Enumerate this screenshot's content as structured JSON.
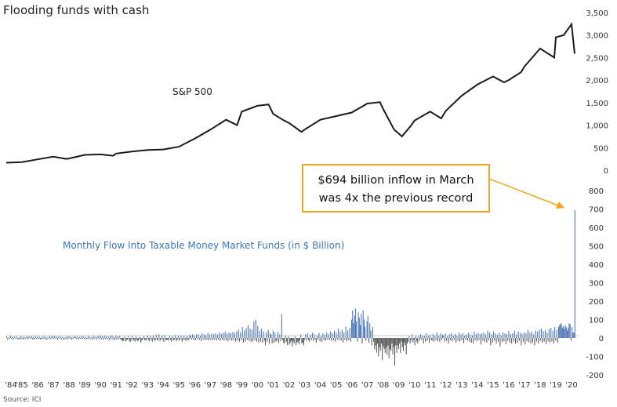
{
  "title": "Flooding funds with cash",
  "source": "Source: ICI",
  "colors": {
    "sp500_line": "#1a1a1a",
    "inflow": "#4472b8",
    "outflow": "#555555",
    "callout_border": "#f2a51a",
    "arrow": "#f2a51a",
    "flow_label": "#3f76b6"
  },
  "annotation": {
    "line1": "$694 billion inflow in March",
    "line2": "was 4x the previous record"
  },
  "chart_data": [
    {
      "type": "line",
      "series": [
        {
          "name": "S&P 500",
          "x": [
            1984,
            1985,
            1986,
            1987,
            1987.8,
            1988,
            1989,
            1990,
            1990.8,
            1991,
            1992,
            1993,
            1994,
            1995,
            1996,
            1997,
            1998,
            1998.7,
            1999,
            2000,
            2000.7,
            2001,
            2001.7,
            2002,
            2002.8,
            2003,
            2004,
            2005,
            2006,
            2007,
            2007.8,
            2008,
            2008.7,
            2009.2,
            2009.8,
            2010,
            2011,
            2011.7,
            2012,
            2013,
            2014,
            2015,
            2015.7,
            2016,
            2016.8,
            2017,
            2018,
            2018.9,
            2019,
            2019.5,
            2020,
            2020.2
          ],
          "values": [
            165,
            180,
            240,
            300,
            250,
            260,
            340,
            350,
            320,
            370,
            415,
            450,
            460,
            520,
            700,
            900,
            1120,
            1000,
            1300,
            1430,
            1460,
            1250,
            1100,
            1050,
            850,
            900,
            1120,
            1200,
            1280,
            1480,
            1510,
            1360,
            900,
            750,
            1000,
            1100,
            1300,
            1150,
            1320,
            1650,
            1900,
            2080,
            1950,
            2000,
            2180,
            2300,
            2700,
            2500,
            2950,
            3000,
            3240,
            2585
          ]
        }
      ],
      "ylim": [
        0,
        3500
      ],
      "yticks": [
        "3,500",
        "3,000",
        "2,500",
        "2,000",
        "1,500",
        "1,000",
        "500",
        "0"
      ]
    },
    {
      "type": "bar",
      "series": [
        {
          "name": "Monthly Flow Into Taxable Money Market Funds (in $ Billion)",
          "x_start": 1984,
          "x_end": 2020.25,
          "values": [
            10,
            -8,
            5,
            -6,
            12,
            -4,
            8,
            -10,
            6,
            -3,
            9,
            -5,
            -7,
            4,
            -9,
            11,
            -6,
            7,
            -8,
            5,
            -4,
            10,
            -7,
            6,
            8,
            -5,
            10,
            -7,
            6,
            -9,
            12,
            -4,
            7,
            -6,
            9,
            -8,
            -5,
            8,
            -6,
            10,
            -7,
            5,
            -9,
            7,
            -4,
            11,
            -6,
            8,
            9,
            -6,
            12,
            -5,
            8,
            -10,
            7,
            -4,
            10,
            -8,
            6,
            -5,
            -8,
            5,
            -7,
            9,
            -6,
            11,
            -5,
            7,
            -9,
            6,
            -4,
            10,
            7,
            -6,
            9,
            -8,
            5,
            -4,
            11,
            -7,
            8,
            -5,
            6,
            -9,
            -4,
            10,
            -6,
            8,
            -7,
            5,
            -9,
            12,
            -5,
            7,
            -8,
            6,
            12,
            -8,
            15,
            -6,
            9,
            -10,
            14,
            -5,
            11,
            -7,
            8,
            -12,
            10,
            -6,
            13,
            -9,
            7,
            -11,
            15,
            -8,
            9,
            -6,
            12,
            -10,
            -10,
            -18,
            -14,
            8,
            -20,
            -12,
            -9,
            10,
            -16,
            -22,
            -8,
            12,
            -15,
            -10,
            -20,
            9,
            -14,
            -18,
            -11,
            7,
            -25,
            -13,
            -9,
            10,
            -12,
            -8,
            -15,
            14,
            -10,
            -18,
            12,
            -9,
            -20,
            15,
            -11,
            -14,
            18,
            -12,
            -9,
            20,
            -16,
            -10,
            14,
            -8,
            -22,
            16,
            -13,
            -10,
            -10,
            -15,
            12,
            -8,
            -20,
            14,
            -12,
            -9,
            16,
            -18,
            -10,
            13,
            -14,
            -8,
            15,
            -20,
            -11,
            12,
            -9,
            -16,
            14,
            -12,
            -10,
            18,
            12,
            -8,
            20,
            -10,
            15,
            -12,
            18,
            -6,
            22,
            -10,
            14,
            -16,
            25,
            -8,
            20,
            -12,
            16,
            -10,
            28,
            -14,
            18,
            -9,
            24,
            -11,
            20,
            -10,
            25,
            -12,
            18,
            -8,
            30,
            -15,
            22,
            -10,
            28,
            -14,
            35,
            -12,
            24,
            -18,
            30,
            -10,
            26,
            -15,
            32,
            -12,
            28,
            -20,
            35,
            -15,
            45,
            -20,
            30,
            -12,
            60,
            -25,
            40,
            -18,
            55,
            -10,
            70,
            -15,
            50,
            -22,
            45,
            -18,
            90,
            -12,
            100,
            -20,
            65,
            -25,
            40,
            -20,
            50,
            -25,
            35,
            -15,
            -40,
            30,
            -20,
            45,
            -30,
            25,
            20,
            -30,
            40,
            -25,
            30,
            -20,
            -15,
            35,
            -28,
            20,
            -18,
            128,
            -10,
            -25,
            -30,
            15,
            -20,
            -40,
            10,
            -35,
            -25,
            -15,
            -45,
            -20,
            -30,
            10,
            -40,
            -25,
            -20,
            -35,
            -15,
            20,
            -30,
            -25,
            -40,
            -10,
            20,
            -15,
            25,
            -10,
            -20,
            18,
            -12,
            30,
            -15,
            22,
            -8,
            -25,
            15,
            -10,
            28,
            -18,
            12,
            -20,
            25,
            -12,
            18,
            -15,
            30,
            -10,
            20,
            -10,
            35,
            -15,
            25,
            -12,
            40,
            -20,
            30,
            -8,
            50,
            -10,
            35,
            -15,
            45,
            -25,
            30,
            -10,
            60,
            -18,
            40,
            -12,
            55,
            -20,
            100,
            150,
            80,
            120,
            160,
            90,
            -20,
            140,
            110,
            70,
            130,
            -30,
            150,
            100,
            60,
            -15,
            90,
            120,
            -25,
            80,
            40,
            -40,
            60,
            -20,
            -60,
            -40,
            -80,
            -30,
            -100,
            -50,
            -70,
            -30,
            -120,
            -45,
            -60,
            -80,
            -50,
            -90,
            -40,
            -110,
            -60,
            -70,
            -30,
            -90,
            -50,
            -150,
            -40,
            -80,
            -40,
            -60,
            -30,
            -80,
            -20,
            -50,
            -70,
            -25,
            -40,
            -90,
            -30,
            -20,
            10,
            -30,
            -15,
            20,
            -25,
            -10,
            -40,
            15,
            -20,
            -30,
            10,
            -15,
            20,
            -10,
            15,
            -30,
            10,
            -20,
            25,
            -15,
            12,
            -25,
            18,
            -10,
            -15,
            22,
            -20,
            10,
            -12,
            30,
            -18,
            14,
            -22,
            25,
            -10,
            18,
            15,
            -20,
            25,
            -15,
            10,
            -30,
            20,
            -12,
            28,
            -18,
            15,
            -10,
            22,
            -25,
            12,
            -15,
            30,
            -20,
            18,
            -12,
            25,
            -28,
            15,
            -10,
            20,
            -15,
            30,
            -20,
            18,
            -25,
            15,
            -30,
            35,
            -12,
            22,
            -18,
            28,
            -10,
            20,
            -35,
            25,
            -15,
            30,
            -20,
            18,
            -25,
            40,
            -12,
            30,
            -40,
            20,
            -25,
            35,
            -15,
            25,
            -30,
            18,
            -20,
            28,
            -45,
            15,
            -22,
            30,
            -18,
            25,
            -35,
            20,
            -15,
            38,
            -25,
            22,
            -30,
            25,
            -18,
            40,
            -30,
            20,
            -25,
            35,
            -15,
            28,
            -40,
            22,
            -20,
            30,
            -35,
            25,
            -18,
            45,
            -22,
            28,
            -30,
            35,
            -25,
            20,
            -40,
            40,
            -20,
            35,
            -30,
            45,
            -15,
            50,
            -25,
            38,
            -20,
            42,
            -35,
            30,
            -18,
            48,
            -25,
            55,
            -20,
            40,
            -30,
            60,
            -15,
            45,
            -25,
            60,
            70,
            80,
            75,
            55,
            65,
            50,
            70,
            60,
            40,
            55,
            80,
            75,
            -15,
            60,
            30,
            30,
            694
          ]
        }
      ],
      "ylim": [
        -200,
        800
      ],
      "yticks": [
        "800",
        "700",
        "600",
        "500",
        "400",
        "300",
        "200",
        "100",
        "0",
        "-100",
        "-200"
      ]
    }
  ],
  "xticks": [
    "'84",
    "'85",
    "'86",
    "'87",
    "'88",
    "'89",
    "'90",
    "'91",
    "'92",
    "'93",
    "'94",
    "'95",
    "'96",
    "'97",
    "'98",
    "'99",
    "'00",
    "'01",
    "'02",
    "'03",
    "'04",
    "'05",
    "'06",
    "'07",
    "'08",
    "'09",
    "'10",
    "'11",
    "'12",
    "'13",
    "'14",
    "'15",
    "'16",
    "'17",
    "'18",
    "'19",
    "'20"
  ]
}
